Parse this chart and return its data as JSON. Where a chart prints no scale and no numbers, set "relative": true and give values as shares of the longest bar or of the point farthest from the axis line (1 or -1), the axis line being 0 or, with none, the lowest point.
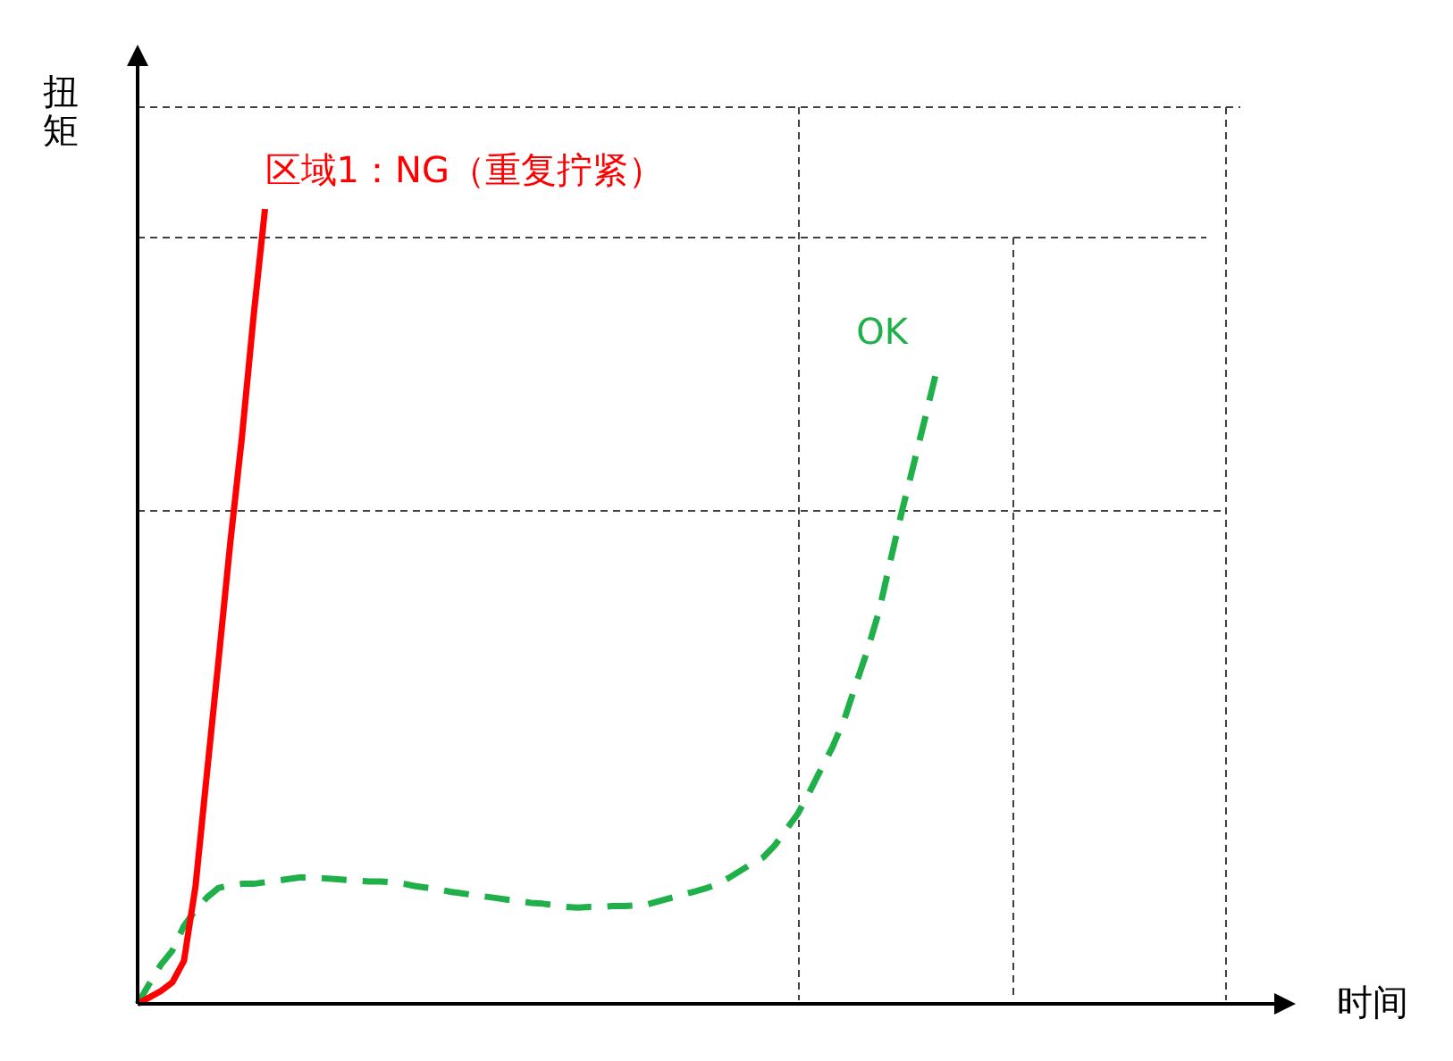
{
  "chart_data": {
    "type": "line",
    "relative": true,
    "xlabel": "时间",
    "ylabel": "扭矩",
    "categories": [
      null,
      null,
      null,
      null,
      null,
      null,
      null,
      null,
      null,
      null,
      null,
      null,
      null,
      null,
      null,
      null,
      null,
      null,
      null,
      null,
      null,
      null,
      null,
      null,
      null,
      null,
      null,
      null,
      null,
      null,
      null,
      null,
      null,
      null,
      null,
      null,
      null,
      null,
      null,
      null,
      null,
      null,
      null,
      null,
      null,
      null,
      null,
      null,
      null,
      null,
      null,
      null,
      null,
      null,
      null,
      null,
      null,
      null,
      null,
      null,
      null,
      null,
      null,
      null,
      null,
      null,
      null,
      null,
      null,
      null,
      null,
      null,
      null,
      null,
      null,
      null,
      null,
      null,
      null,
      null,
      null,
      null,
      null,
      null,
      null,
      null,
      null,
      null,
      null,
      null,
      null,
      null,
      null,
      null,
      null,
      null,
      null,
      null,
      null,
      null,
      null
    ],
    "series": [
      {
        "name": "区域1：NG（重复拧紧）",
        "color": "#ff0000",
        "line_style": "solid",
        "values": [
          0,
          0.008,
          0.016,
          0.027,
          0.054,
          0.148,
          0.292,
          0.434,
          0.58,
          0.712,
          0.863,
          1,
          null,
          null,
          null,
          null,
          null,
          null,
          null,
          null,
          null,
          null,
          null,
          null,
          null,
          null,
          null,
          null,
          null,
          null,
          null,
          null,
          null,
          null,
          null,
          null,
          null,
          null,
          null,
          null,
          null,
          null,
          null,
          null,
          null,
          null,
          null,
          null,
          null,
          null,
          null,
          null,
          null,
          null,
          null,
          null,
          null,
          null,
          null,
          null,
          null,
          null,
          null,
          null,
          null,
          null,
          null,
          null,
          null,
          null,
          null,
          null,
          null,
          null,
          null,
          null,
          null,
          null,
          null,
          null,
          null,
          null,
          null,
          null,
          null,
          null,
          null,
          null,
          null,
          null,
          null,
          null,
          null,
          null,
          null,
          null,
          null,
          null,
          null,
          null,
          null
        ]
      },
      {
        "name": "OK",
        "color": "#1fb04a",
        "line_style": "dashed",
        "values": [
          0,
          0.025,
          0.049,
          0.067,
          0.098,
          0.118,
          0.134,
          0.146,
          0.149,
          0.151,
          0.151,
          0.153,
          0.155,
          0.157,
          0.159,
          0.159,
          0.158,
          0.157,
          0.156,
          0.155,
          0.154,
          0.154,
          0.153,
          0.151,
          0.148,
          0.146,
          0.144,
          0.141,
          0.139,
          0.137,
          0.135,
          0.133,
          0.131,
          0.129,
          0.127,
          0.126,
          0.124,
          0.122,
          0.121,
          0.122,
          0.122,
          0.123,
          0.123,
          0.124,
          0.125,
          0.129,
          0.133,
          0.137,
          0.141,
          0.145,
          0.15,
          0.158,
          0.167,
          0.176,
          0.184,
          0.199,
          0.219,
          0.239,
          0.266,
          0.295,
          0.323,
          0.357,
          0.401,
          0.444,
          0.493,
          0.557,
          0.62,
          0.678,
          0.737,
          0.797,
          null,
          null,
          null,
          null,
          null,
          null,
          null,
          null,
          null,
          null,
          null,
          null,
          null,
          null,
          null,
          null,
          null,
          null,
          null,
          null,
          null,
          null,
          null,
          null,
          null,
          null,
          null,
          null,
          null,
          null,
          null
        ]
      }
    ]
  }
}
